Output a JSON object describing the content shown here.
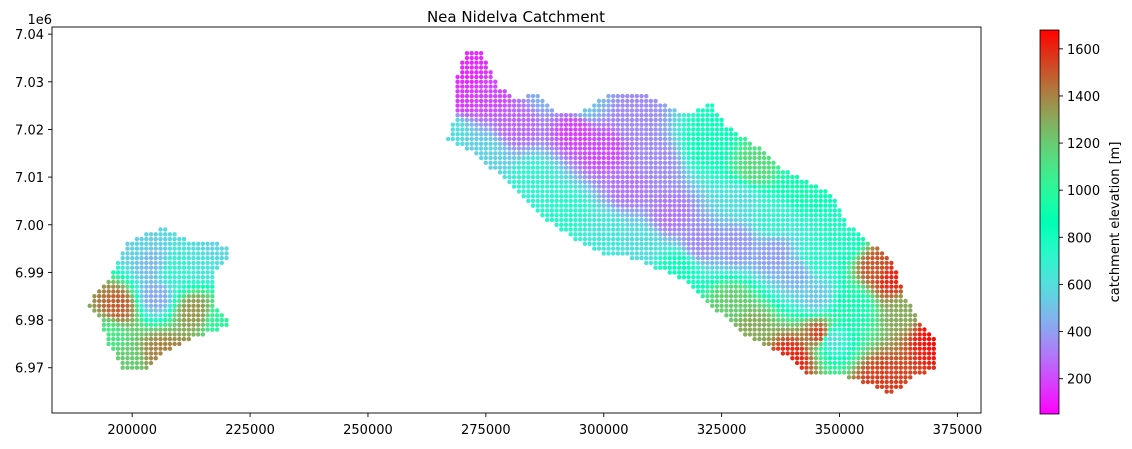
{
  "chart_data": {
    "type": "scatter",
    "title": "Nea Nidelva Catchment",
    "xlabel": "",
    "ylabel": "",
    "xlim": [
      183000,
      380000
    ],
    "ylim": [
      6960500,
      7041500
    ],
    "x_ticks": [
      200000,
      225000,
      250000,
      275000,
      300000,
      325000,
      350000,
      375000
    ],
    "x_tick_labels": [
      "200000",
      "225000",
      "250000",
      "275000",
      "300000",
      "325000",
      "350000",
      "375000"
    ],
    "y_ticks": [
      6970000,
      6980000,
      6990000,
      7000000,
      7010000,
      7020000,
      7030000,
      7040000
    ],
    "y_tick_labels": [
      "6.97",
      "6.98",
      "6.99",
      "7.00",
      "7.01",
      "7.02",
      "7.03",
      "7.04"
    ],
    "y_offset_label": "1e6",
    "grid": false,
    "grid_spacing_m": 1000,
    "colormap": "rainbow",
    "colorbar": {
      "label": "catchment elevation [m]",
      "range": [
        50,
        1680
      ],
      "ticks": [
        200,
        400,
        600,
        800,
        1000,
        1200,
        1400,
        1600
      ],
      "tick_labels": [
        "200",
        "400",
        "600",
        "800",
        "1000",
        "1200",
        "1400",
        "1600"
      ]
    },
    "regions": [
      {
        "name": "west",
        "outline": [
          [
            192000,
            6985000
          ],
          [
            196000,
            6990000
          ],
          [
            199000,
            6996000
          ],
          [
            203000,
            6998000
          ],
          [
            207000,
            6999500
          ],
          [
            212000,
            6997000
          ],
          [
            217000,
            6996500
          ],
          [
            221000,
            6995500
          ],
          [
            221000,
            6993000
          ],
          [
            218000,
            6990000
          ],
          [
            218000,
            6983000
          ],
          [
            221000,
            6979000
          ],
          [
            214000,
            6976500
          ],
          [
            207000,
            6973000
          ],
          [
            203000,
            6969500
          ],
          [
            198000,
            6969500
          ],
          [
            195000,
            6975000
          ],
          [
            193000,
            6981000
          ],
          [
            191000,
            6983000
          ]
        ],
        "elev_points": [
          [
            205000,
            6985000,
            430
          ],
          [
            204000,
            6992000,
            480
          ],
          [
            201000,
            6996000,
            550
          ],
          [
            215000,
            6992000,
            620
          ],
          [
            197000,
            6983000,
            1480
          ],
          [
            206000,
            6973000,
            1400
          ],
          [
            211000,
            6971000,
            1450
          ],
          [
            213000,
            6982000,
            1350
          ],
          [
            195000,
            6977000,
            1100
          ],
          [
            219000,
            6980000,
            1000
          ],
          [
            209000,
            6990000,
            700
          ],
          [
            199000,
            6971000,
            1200
          ],
          [
            217000,
            6995000,
            560
          ]
        ]
      },
      {
        "name": "east",
        "outline": [
          [
            268000,
            7021000
          ],
          [
            269000,
            7031000
          ],
          [
            271000,
            7037000
          ],
          [
            274000,
            7037000
          ],
          [
            278000,
            7029000
          ],
          [
            282000,
            7026000
          ],
          [
            286000,
            7028000
          ],
          [
            290000,
            7023000
          ],
          [
            296000,
            7024000
          ],
          [
            301000,
            7027500
          ],
          [
            308000,
            7028000
          ],
          [
            312000,
            7026000
          ],
          [
            318000,
            7023000
          ],
          [
            323000,
            7025500
          ],
          [
            326000,
            7021000
          ],
          [
            332000,
            7017000
          ],
          [
            338000,
            7012000
          ],
          [
            344000,
            7009000
          ],
          [
            348000,
            7007000
          ],
          [
            352000,
            7000000
          ],
          [
            357000,
            6996000
          ],
          [
            361000,
            6993000
          ],
          [
            364000,
            6985000
          ],
          [
            367000,
            6980000
          ],
          [
            371000,
            6976000
          ],
          [
            371000,
            6970000
          ],
          [
            366000,
            6968000
          ],
          [
            361000,
            6964500
          ],
          [
            356000,
            6966500
          ],
          [
            350000,
            6968500
          ],
          [
            343000,
            6969000
          ],
          [
            338000,
            6973000
          ],
          [
            330000,
            6976500
          ],
          [
            324000,
            6982000
          ],
          [
            316000,
            6989000
          ],
          [
            306000,
            6993000
          ],
          [
            300000,
            6994000
          ],
          [
            294000,
            6997000
          ],
          [
            288000,
            7001000
          ],
          [
            282000,
            7007000
          ],
          [
            276000,
            7012000
          ],
          [
            271000,
            7016000
          ],
          [
            267000,
            7018000
          ]
        ],
        "elev_points": [
          [
            271000,
            7032000,
            130
          ],
          [
            270000,
            7026000,
            170
          ],
          [
            276000,
            7027000,
            200
          ],
          [
            281000,
            7021000,
            260
          ],
          [
            294000,
            7020000,
            180
          ],
          [
            300000,
            7016000,
            200
          ],
          [
            306000,
            7022000,
            350
          ],
          [
            311000,
            7013000,
            350
          ],
          [
            314000,
            7002000,
            300
          ],
          [
            320000,
            6996000,
            350
          ],
          [
            328000,
            6996000,
            380
          ],
          [
            336000,
            6994000,
            400
          ],
          [
            341000,
            6990000,
            450
          ],
          [
            345000,
            6985000,
            520
          ],
          [
            348000,
            6976000,
            600
          ],
          [
            329000,
            7005000,
            600
          ],
          [
            336000,
            7001000,
            700
          ],
          [
            322000,
            7017000,
            850
          ],
          [
            332000,
            7012000,
            1150
          ],
          [
            342000,
            7008000,
            900
          ],
          [
            358000,
            6991000,
            1500
          ],
          [
            361000,
            6989000,
            1600
          ],
          [
            346000,
            6977000,
            1550
          ],
          [
            340000,
            6972000,
            1600
          ],
          [
            359000,
            6967000,
            1550
          ],
          [
            370000,
            6977000,
            1650
          ],
          [
            364000,
            6982000,
            1300
          ],
          [
            327000,
            6983000,
            1200
          ],
          [
            331000,
            6978000,
            1300
          ],
          [
            285000,
            7009000,
            700
          ],
          [
            292000,
            7002000,
            750
          ],
          [
            300000,
            6998000,
            650
          ],
          [
            308000,
            6996000,
            600
          ],
          [
            316000,
            6991000,
            850
          ],
          [
            353000,
            6983000,
            900
          ],
          [
            351000,
            6997000,
            800
          ],
          [
            345000,
            6993000,
            750
          ],
          [
            288000,
            7028000,
            450
          ],
          [
            296000,
            7025000,
            500
          ],
          [
            305000,
            7008000,
            300
          ],
          [
            268000,
            7020000,
            600
          ],
          [
            275000,
            7015000,
            550
          ]
        ]
      }
    ]
  }
}
